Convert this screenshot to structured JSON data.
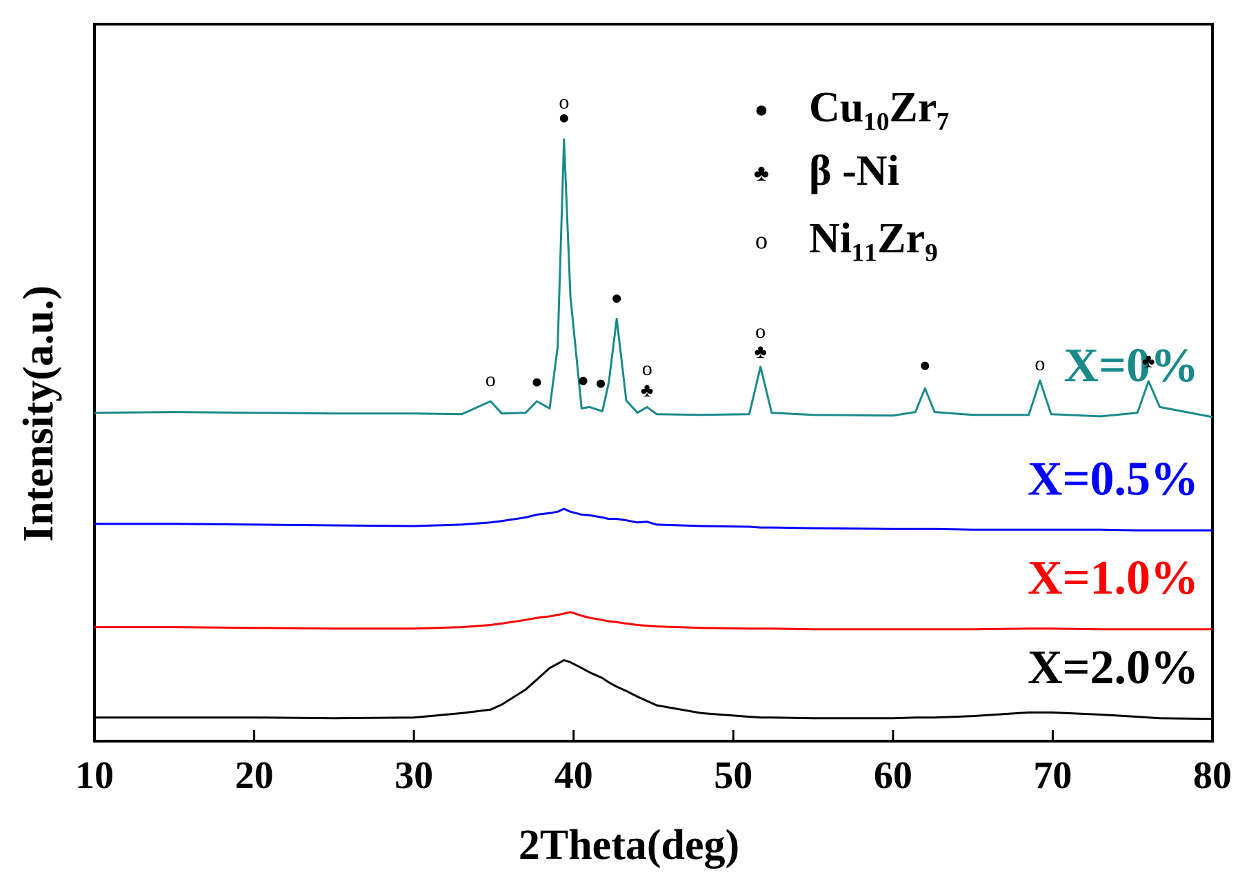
{
  "chart_data": {
    "type": "line",
    "xlabel": "2Theta(deg)",
    "ylabel": "Intensity(a.u.)",
    "xlim": [
      10,
      80
    ],
    "xticks": [
      10,
      20,
      30,
      40,
      50,
      60,
      70,
      80
    ],
    "ylim": [
      0,
      100
    ],
    "x": [
      10,
      15,
      20,
      25,
      30,
      33,
      34.8,
      35.5,
      37,
      37.7,
      38.5,
      39,
      39.4,
      39.8,
      40.5,
      41,
      41.8,
      42.2,
      42.7,
      43.3,
      44,
      44.6,
      45.2,
      48,
      51,
      51.7,
      52.4,
      55,
      60,
      61.4,
      62,
      62.6,
      65,
      68.5,
      69.2,
      69.9,
      73,
      75.3,
      76,
      76.7,
      80
    ],
    "series": [
      {
        "name": "X=0%",
        "color": "#198a8a",
        "values": [
          45.8,
          45.9,
          45.8,
          45.7,
          45.7,
          45.6,
          47.4,
          45.7,
          45.8,
          47.4,
          46.4,
          55.0,
          83.9,
          62.0,
          46.4,
          46.6,
          46.0,
          50.0,
          58.9,
          47.5,
          45.8,
          46.6,
          45.6,
          45.5,
          45.6,
          52.2,
          45.8,
          45.5,
          45.4,
          45.9,
          49.2,
          45.9,
          45.5,
          45.5,
          50.3,
          45.6,
          45.3,
          45.8,
          50.2,
          46.6,
          45.2
        ]
      },
      {
        "name": "X=0.5%",
        "color": "#0000ff",
        "values": [
          30.3,
          30.3,
          30.2,
          30.1,
          30.0,
          30.2,
          30.5,
          30.7,
          31.2,
          31.6,
          31.8,
          32.0,
          32.4,
          32.0,
          31.6,
          31.5,
          31.2,
          31.0,
          31.0,
          30.8,
          30.5,
          30.6,
          30.2,
          30.0,
          29.9,
          29.8,
          29.8,
          29.7,
          29.6,
          29.6,
          29.6,
          29.6,
          29.5,
          29.5,
          29.5,
          29.5,
          29.5,
          29.4,
          29.4,
          29.4,
          29.4
        ]
      },
      {
        "name": "X=1.0%",
        "color": "#ff0000",
        "values": [
          15.9,
          15.9,
          15.8,
          15.7,
          15.7,
          15.9,
          16.2,
          16.4,
          16.9,
          17.2,
          17.4,
          17.6,
          17.8,
          18.0,
          17.5,
          17.2,
          16.9,
          16.7,
          16.6,
          16.4,
          16.2,
          16.1,
          16.0,
          15.8,
          15.7,
          15.7,
          15.7,
          15.6,
          15.6,
          15.6,
          15.6,
          15.6,
          15.6,
          15.7,
          15.7,
          15.7,
          15.6,
          15.6,
          15.6,
          15.6,
          15.6
        ]
      },
      {
        "name": "X=2.0%",
        "color": "#000000",
        "values": [
          3.3,
          3.3,
          3.3,
          3.2,
          3.3,
          3.9,
          4.4,
          5.1,
          7.2,
          8.6,
          10.2,
          10.8,
          11.3,
          11.0,
          10.2,
          9.6,
          8.8,
          8.2,
          7.6,
          7.0,
          6.2,
          5.6,
          5.0,
          3.9,
          3.4,
          3.3,
          3.3,
          3.2,
          3.2,
          3.3,
          3.3,
          3.3,
          3.5,
          4.0,
          4.0,
          4.0,
          3.7,
          3.4,
          3.3,
          3.2,
          3.1
        ]
      }
    ],
    "legend": [
      {
        "symbol": "●",
        "label": "Cu₁₀Zr₇"
      },
      {
        "symbol": "♣",
        "label": "β -Ni"
      },
      {
        "symbol": "o",
        "label": "Ni₁₁Zr₉"
      }
    ],
    "peak_markers": [
      {
        "x": 34.8,
        "y": 50.2,
        "symbol": "o"
      },
      {
        "x": 37.7,
        "y": 49.9,
        "symbol": "●"
      },
      {
        "x": 39.4,
        "y": 86.7,
        "symbol": "●"
      },
      {
        "x": 39.4,
        "y": 88.9,
        "symbol": "o"
      },
      {
        "x": 40.6,
        "y": 50.1,
        "symbol": "●"
      },
      {
        "x": 41.7,
        "y": 49.7,
        "symbol": "●"
      },
      {
        "x": 42.7,
        "y": 61.6,
        "symbol": "●"
      },
      {
        "x": 44.6,
        "y": 48.7,
        "symbol": "♣"
      },
      {
        "x": 44.6,
        "y": 51.7,
        "symbol": "o"
      },
      {
        "x": 51.7,
        "y": 54.1,
        "symbol": "♣"
      },
      {
        "x": 51.7,
        "y": 56.9,
        "symbol": "o"
      },
      {
        "x": 62,
        "y": 52.2,
        "symbol": "●"
      },
      {
        "x": 69.2,
        "y": 52.4,
        "symbol": "o"
      },
      {
        "x": 76,
        "y": 52.8,
        "symbol": "♣"
      }
    ]
  }
}
